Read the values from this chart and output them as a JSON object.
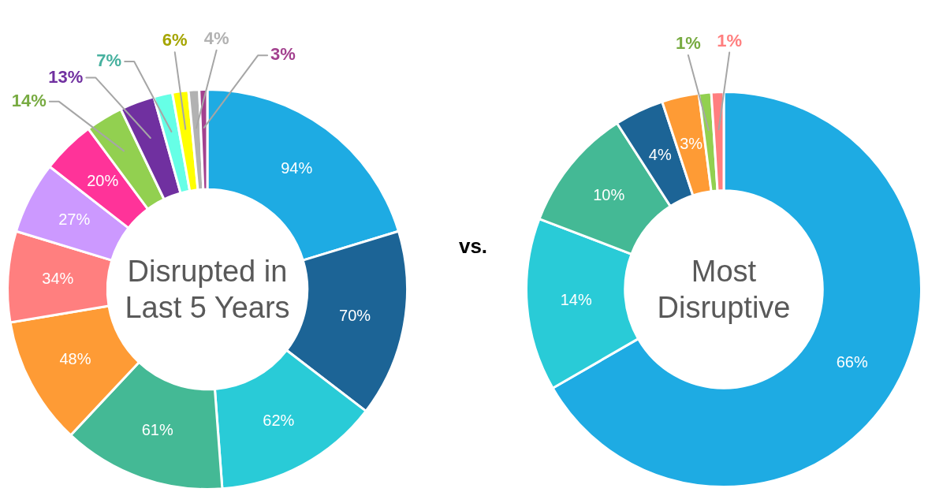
{
  "chart_data": [
    {
      "type": "donut",
      "title": "Disrupted in Last 5 Years",
      "categories": [
        null,
        null,
        null,
        null,
        null,
        null,
        null,
        null,
        null,
        null,
        null,
        null,
        null,
        null
      ],
      "values": [
        94,
        70,
        62,
        61,
        48,
        34,
        27,
        20,
        14,
        13,
        7,
        6,
        4,
        3
      ],
      "value_labels": [
        "94%",
        "70%",
        "62%",
        "61%",
        "48%",
        "34%",
        "27%",
        "20%",
        "14%",
        "13%",
        "7%",
        "6%",
        "4%",
        "3%"
      ],
      "colors": [
        "#1eabe3",
        "#1c6496",
        "#29cbd7",
        "#44b995",
        "#fe9b35",
        "#ff7f7f",
        "#cc99ff",
        "#ff3399",
        "#92d050",
        "#7030a0",
        "#66ffe6",
        "#ffff00",
        "#b2b2b2",
        "#a3418f"
      ]
    },
    {
      "type": "other",
      "title": "vs."
    },
    {
      "type": "donut",
      "title": "Most Disruptive",
      "categories": [
        null,
        null,
        null,
        null,
        null,
        null,
        null
      ],
      "values": [
        66,
        14,
        10,
        4,
        3,
        1,
        1
      ],
      "value_labels": [
        "66%",
        "14%",
        "10%",
        "4%",
        "3%",
        "1%",
        "1%"
      ],
      "colors": [
        "#1eabe3",
        "#29cbd7",
        "#44b995",
        "#1c6496",
        "#fe9b35",
        "#92d050",
        "#ff7f7f"
      ]
    }
  ]
}
